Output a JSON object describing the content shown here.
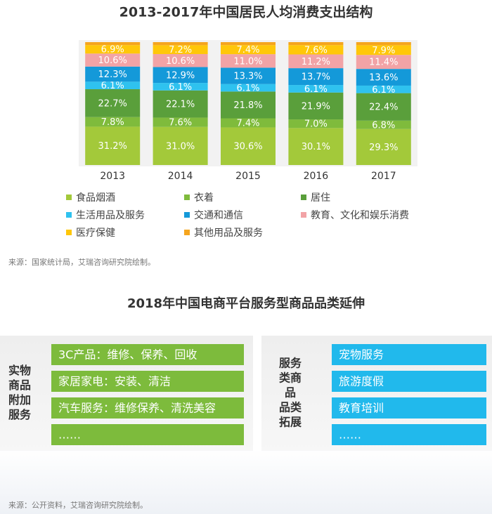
{
  "chart_data": {
    "type": "stacked_bar",
    "title": "2013-2017年中国居民人均消费支出结构",
    "categories": [
      "2013",
      "2014",
      "2015",
      "2016",
      "2017"
    ],
    "ylim": [
      0,
      100
    ],
    "legend": "bottom",
    "series": [
      {
        "name": "食品烟酒",
        "color": "#a3c93a",
        "values": [
          31.2,
          31.0,
          30.6,
          30.1,
          29.3
        ],
        "value_labels": [
          "31.2%",
          "31.0%",
          "30.6%",
          "30.1%",
          "29.3%"
        ]
      },
      {
        "name": "衣着",
        "color": "#7fbb3c",
        "values": [
          7.8,
          7.6,
          7.4,
          7.0,
          6.8
        ],
        "value_labels": [
          "7.8%",
          "7.6%",
          "7.4%",
          "7.0%",
          "6.8%"
        ]
      },
      {
        "name": "居住",
        "color": "#5a9f3b",
        "values": [
          22.7,
          22.1,
          21.8,
          21.9,
          22.4
        ],
        "value_labels": [
          "22.7%",
          "22.1%",
          "21.8%",
          "21.9%",
          "22.4%"
        ]
      },
      {
        "name": "生活用品及服务",
        "color": "#2fc2ef",
        "values": [
          6.1,
          6.1,
          6.1,
          6.1,
          6.1
        ],
        "value_labels": [
          "6.1%",
          "6.1%",
          "6.1%",
          "6.1%",
          "6.1%"
        ]
      },
      {
        "name": "交通和通信",
        "color": "#1499d9",
        "values": [
          12.3,
          12.9,
          13.3,
          13.7,
          13.6
        ],
        "value_labels": [
          "12.3%",
          "12.9%",
          "13.3%",
          "13.7%",
          "13.6%"
        ]
      },
      {
        "name": "教育、文化和娱乐消费",
        "color": "#f2a3a6",
        "values": [
          10.6,
          10.6,
          11.0,
          11.2,
          11.4
        ],
        "value_labels": [
          "10.6%",
          "10.6%",
          "11.0%",
          "11.2%",
          "11.4%"
        ]
      },
      {
        "name": "医疗保健",
        "color": "#ffc709",
        "values": [
          6.9,
          7.2,
          7.4,
          7.6,
          7.9
        ],
        "value_labels": [
          "6.9%",
          "7.2%",
          "7.4%",
          "7.6%",
          "7.9%"
        ]
      },
      {
        "name": "其他用品及服务",
        "color": "#f5a51e",
        "values": [
          2.4,
          2.5,
          2.4,
          2.4,
          2.5
        ]
      }
    ],
    "source": "来源：国家统计局，艾瑞咨询研究院绘制。"
  },
  "diagram": {
    "title": "2018年中国电商平台服务型商品品类延伸",
    "left": {
      "label_lines": [
        "实物",
        "商品",
        "附加",
        "服务"
      ],
      "items": [
        "3C产品：维修、保养、回收",
        "家居家电：安装、清洁",
        "汽车服务：维修保养、清洗美容",
        "……"
      ]
    },
    "right": {
      "label_lines": [
        "服务",
        "类商",
        "品",
        "品类",
        "拓展"
      ],
      "items": [
        "宠物服务",
        "旅游度假",
        "教育培训",
        "……"
      ]
    },
    "source": "来源：公开资料，艾瑞咨询研究院绘制。"
  }
}
